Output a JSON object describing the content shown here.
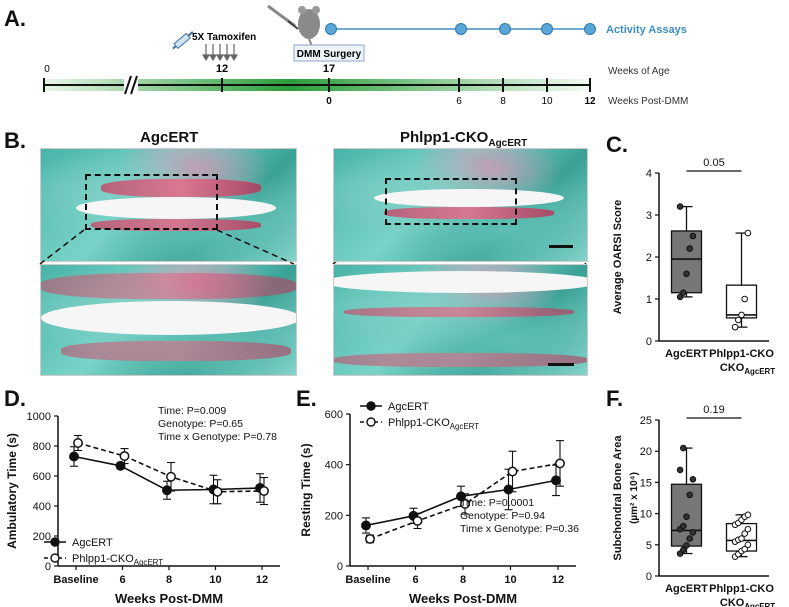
{
  "panel_labels": {
    "a": "A.",
    "b": "B.",
    "c": "C.",
    "d": "D.",
    "e": "E.",
    "f": "F."
  },
  "timeline": {
    "tamoxifen_label": "5X Tamoxifen",
    "surgery_label": "DMM Surgery",
    "assays_label": "Activity Assays",
    "age_label": "Weeks of Age",
    "post_label": "Weeks Post-DMM",
    "age_ticks": [
      "0",
      "12",
      "17"
    ],
    "post_ticks": [
      "0",
      "6",
      "8",
      "10",
      "12"
    ]
  },
  "histology": {
    "left_title": "AgcERT",
    "right_title_main": "Phlpp1-CKO",
    "right_title_sub": "AgcERT"
  },
  "colors": {
    "dark_box": "#777777",
    "light_box": "#ffffff",
    "timeline_green": "#2a9d3a",
    "assay_blue": "#3d8fc4"
  },
  "chart_data": [
    {
      "id": "C",
      "type": "box",
      "ylabel": "Average OARSI Score",
      "ylim": [
        0,
        4
      ],
      "yticks": [
        0,
        1,
        2,
        3,
        4
      ],
      "categories": [
        "AgcERT",
        "Phlpp1-CKO"
      ],
      "category_sub": "AgcERT",
      "boxes": [
        {
          "name": "AgcERT",
          "min": 1.05,
          "q1": 1.15,
          "median": 1.95,
          "q3": 2.62,
          "max": 3.2,
          "points": [
            1.05,
            1.15,
            1.6,
            2.2,
            2.5,
            3.2
          ],
          "fill": "#777777"
        },
        {
          "name": "Phlpp1-CKO",
          "min": 0.33,
          "q1": 0.55,
          "median": 0.62,
          "q3": 1.33,
          "max": 2.57,
          "points": [
            0.33,
            0.5,
            0.62,
            1.0,
            2.57
          ],
          "fill": "#ffffff"
        }
      ],
      "significance": "0.05"
    },
    {
      "id": "D",
      "type": "line",
      "xlabel": "Weeks Post-DMM",
      "ylabel": "Ambulatory Time (s)",
      "categories": [
        "Baseline",
        "6",
        "8",
        "10",
        "12"
      ],
      "ylim": [
        0,
        1000
      ],
      "yticks": [
        0,
        200,
        400,
        600,
        800,
        1000
      ],
      "series": [
        {
          "name": "AgcERT",
          "values": [
            730,
            668,
            505,
            510,
            520
          ],
          "err": [
            65,
            20,
            60,
            95,
            95
          ],
          "marker": "filled",
          "dash": false
        },
        {
          "name": "Phlpp1-CKO",
          "name_sub": "AgcERT",
          "values": [
            820,
            733,
            595,
            495,
            500
          ],
          "err": [
            50,
            50,
            95,
            80,
            90
          ],
          "marker": "open",
          "dash": true
        }
      ],
      "stats": [
        "Time: P=0.009",
        "Genotype: P=0.65",
        "Time x Genotype: P=0.78"
      ]
    },
    {
      "id": "E",
      "type": "line",
      "xlabel": "Weeks Post-DMM",
      "ylabel": "Resting Time (s)",
      "categories": [
        "Baseline",
        "6",
        "8",
        "10",
        "12"
      ],
      "ylim": [
        0,
        600
      ],
      "yticks": [
        0,
        200,
        400,
        600
      ],
      "series": [
        {
          "name": "AgcERT",
          "values": [
            160,
            198,
            275,
            302,
            338
          ],
          "err": [
            30,
            30,
            40,
            80,
            60
          ],
          "marker": "filled",
          "dash": false
        },
        {
          "name": "Phlpp1-CKO",
          "name_sub": "AgcERT",
          "values": [
            107,
            178,
            245,
            373,
            405
          ],
          "err": [
            15,
            30,
            40,
            80,
            90
          ],
          "marker": "open",
          "dash": true
        }
      ],
      "stats": [
        "Time: P=0.0001",
        "Genotype: P=0.94",
        "Time x Genotype: P=0.36"
      ]
    },
    {
      "id": "F",
      "type": "box",
      "ylabel_main": "Subchondral Bone Area",
      "ylabel_unit": "(µm² x 10⁴)",
      "ylim": [
        0,
        25
      ],
      "yticks": [
        0,
        5,
        10,
        15,
        20,
        25
      ],
      "categories": [
        "AgcERT",
        "Phlpp1-CKO"
      ],
      "category_sub": "AgcERT",
      "boxes": [
        {
          "name": "AgcERT",
          "min": 3.6,
          "q1": 4.8,
          "median": 7.3,
          "q3": 14.7,
          "max": 20.5,
          "points": [
            3.6,
            4.2,
            4.9,
            6.0,
            7.0,
            7.5,
            8.0,
            9.5,
            13.0,
            15.5,
            17.0,
            20.5
          ],
          "fill": "#777777"
        },
        {
          "name": "Phlpp1-CKO",
          "min": 3.1,
          "q1": 4.0,
          "median": 5.7,
          "q3": 8.4,
          "max": 9.8,
          "points": [
            3.1,
            3.5,
            4.0,
            4.3,
            5.0,
            5.5,
            5.8,
            6.0,
            6.8,
            7.5,
            8.2,
            8.5,
            9.0,
            9.5,
            9.8
          ],
          "fill": "#ffffff"
        }
      ],
      "significance": "0.19"
    }
  ]
}
